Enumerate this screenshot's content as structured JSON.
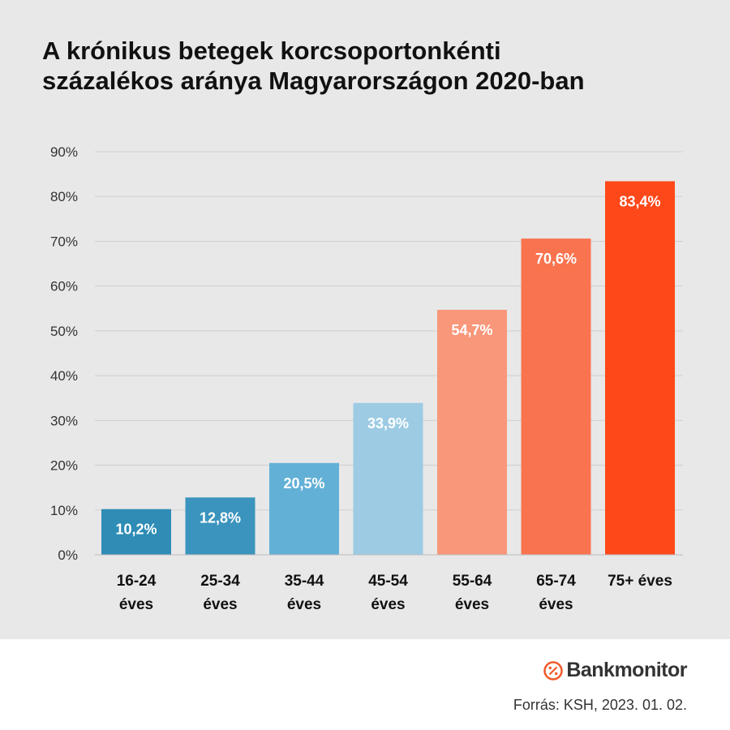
{
  "title_lines": [
    "A krónikus betegek korcsoportonkénti",
    "százalékos aránya Magyarországon 2020-ban"
  ],
  "chart_data": {
    "type": "bar",
    "categories": [
      [
        "16-24",
        "éves"
      ],
      [
        "25-34",
        "éves"
      ],
      [
        "35-44",
        "éves"
      ],
      [
        "45-54",
        "éves"
      ],
      [
        "55-64",
        "éves"
      ],
      [
        "65-74",
        "éves"
      ],
      [
        "75+ éves"
      ]
    ],
    "values": [
      10.2,
      12.8,
      20.5,
      33.9,
      54.7,
      70.6,
      83.4
    ],
    "value_labels": [
      "10,2%",
      "12,8%",
      "20,5%",
      "33,9%",
      "54,7%",
      "70,6%",
      "83,4%"
    ],
    "bar_colors": [
      "#2e8cb5",
      "#3a94bd",
      "#63b0d6",
      "#9ccbe3",
      "#f9977a",
      "#f9734f",
      "#ff4819"
    ],
    "ylim": [
      0,
      90
    ],
    "yticks": [
      0,
      10,
      20,
      30,
      40,
      50,
      60,
      70,
      80,
      90
    ],
    "ytick_labels": [
      "0%",
      "10%",
      "20%",
      "30%",
      "40%",
      "50%",
      "60%",
      "70%",
      "80%",
      "90%"
    ],
    "grid": true,
    "legend": "none"
  },
  "footer": {
    "brand": "Bankmonitor",
    "brand_icon": "percent-logo-icon",
    "brand_color": "#f05a28",
    "source_label": "Forrás:",
    "source_text": "KSH, 2023. 01. 02."
  }
}
